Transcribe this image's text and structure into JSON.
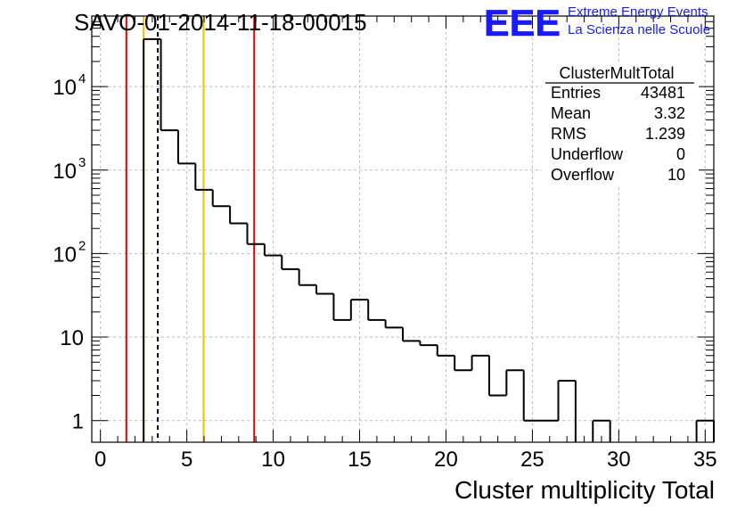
{
  "header": {
    "run_title": "SAVO-01-2014-11-18-00015",
    "logo_text": "EEE",
    "logo_line1": "Extreme Energy Events",
    "logo_line2": "La Scienza nelle Scuole",
    "logo_color": "#1a1aff"
  },
  "stats": {
    "title": "ClusterMultTotal",
    "rows": [
      {
        "label": "Entries",
        "value": "43481"
      },
      {
        "label": "Mean",
        "value": "3.32"
      },
      {
        "label": "RMS",
        "value": "1.239"
      },
      {
        "label": "Underflow",
        "value": "0"
      },
      {
        "label": "Overflow",
        "value": "10"
      }
    ]
  },
  "chart_data": {
    "type": "histogram",
    "xlabel": "Cluster multiplicity Total",
    "ylabel": "",
    "xlim": [
      -0.5,
      35.5
    ],
    "ylim": [
      0.55,
      70000
    ],
    "yscale": "log",
    "grid": true,
    "x_ticks": [
      0,
      5,
      10,
      15,
      20,
      25,
      30,
      35
    ],
    "x_tick_labels": [
      "0",
      "5",
      "10",
      "15",
      "20",
      "25",
      "30",
      "35"
    ],
    "y_ticks": [
      1,
      10,
      100,
      1000,
      10000
    ],
    "y_tick_labels": [
      {
        "base": "1",
        "exp": ""
      },
      {
        "base": "10",
        "exp": ""
      },
      {
        "base": "10",
        "exp": "2"
      },
      {
        "base": "10",
        "exp": "3"
      },
      {
        "base": "10",
        "exp": "4"
      }
    ],
    "bin_width": 1,
    "bins_low": [
      -0.5,
      0.5,
      1.5,
      2.5,
      3.5,
      4.5,
      5.5,
      6.5,
      7.5,
      8.5,
      9.5,
      10.5,
      11.5,
      12.5,
      13.5,
      14.5,
      15.5,
      16.5,
      17.5,
      18.5,
      19.5,
      20.5,
      21.5,
      22.5,
      23.5,
      24.5,
      25.5,
      26.5,
      27.5,
      28.5,
      29.5,
      30.5,
      31.5,
      32.5,
      33.5,
      34.5
    ],
    "counts": [
      0,
      0,
      0,
      37000,
      3000,
      1200,
      580,
      370,
      230,
      130,
      95,
      65,
      42,
      33,
      16,
      28,
      16,
      13,
      9,
      8,
      6,
      4,
      6,
      2,
      4,
      1,
      1,
      3,
      0,
      1,
      0,
      0,
      0,
      0,
      0,
      1
    ],
    "vertical_lines": [
      {
        "x": 1.5,
        "color": "#e00000",
        "style": "solid"
      },
      {
        "x": 2.5,
        "color": "#f0c000",
        "style": "solid"
      },
      {
        "x": 3.32,
        "color": "#000000",
        "style": "dashed"
      },
      {
        "x": 5.97,
        "color": "#f0c000",
        "style": "solid"
      },
      {
        "x": 8.9,
        "color": "#e00000",
        "style": "solid"
      }
    ]
  }
}
